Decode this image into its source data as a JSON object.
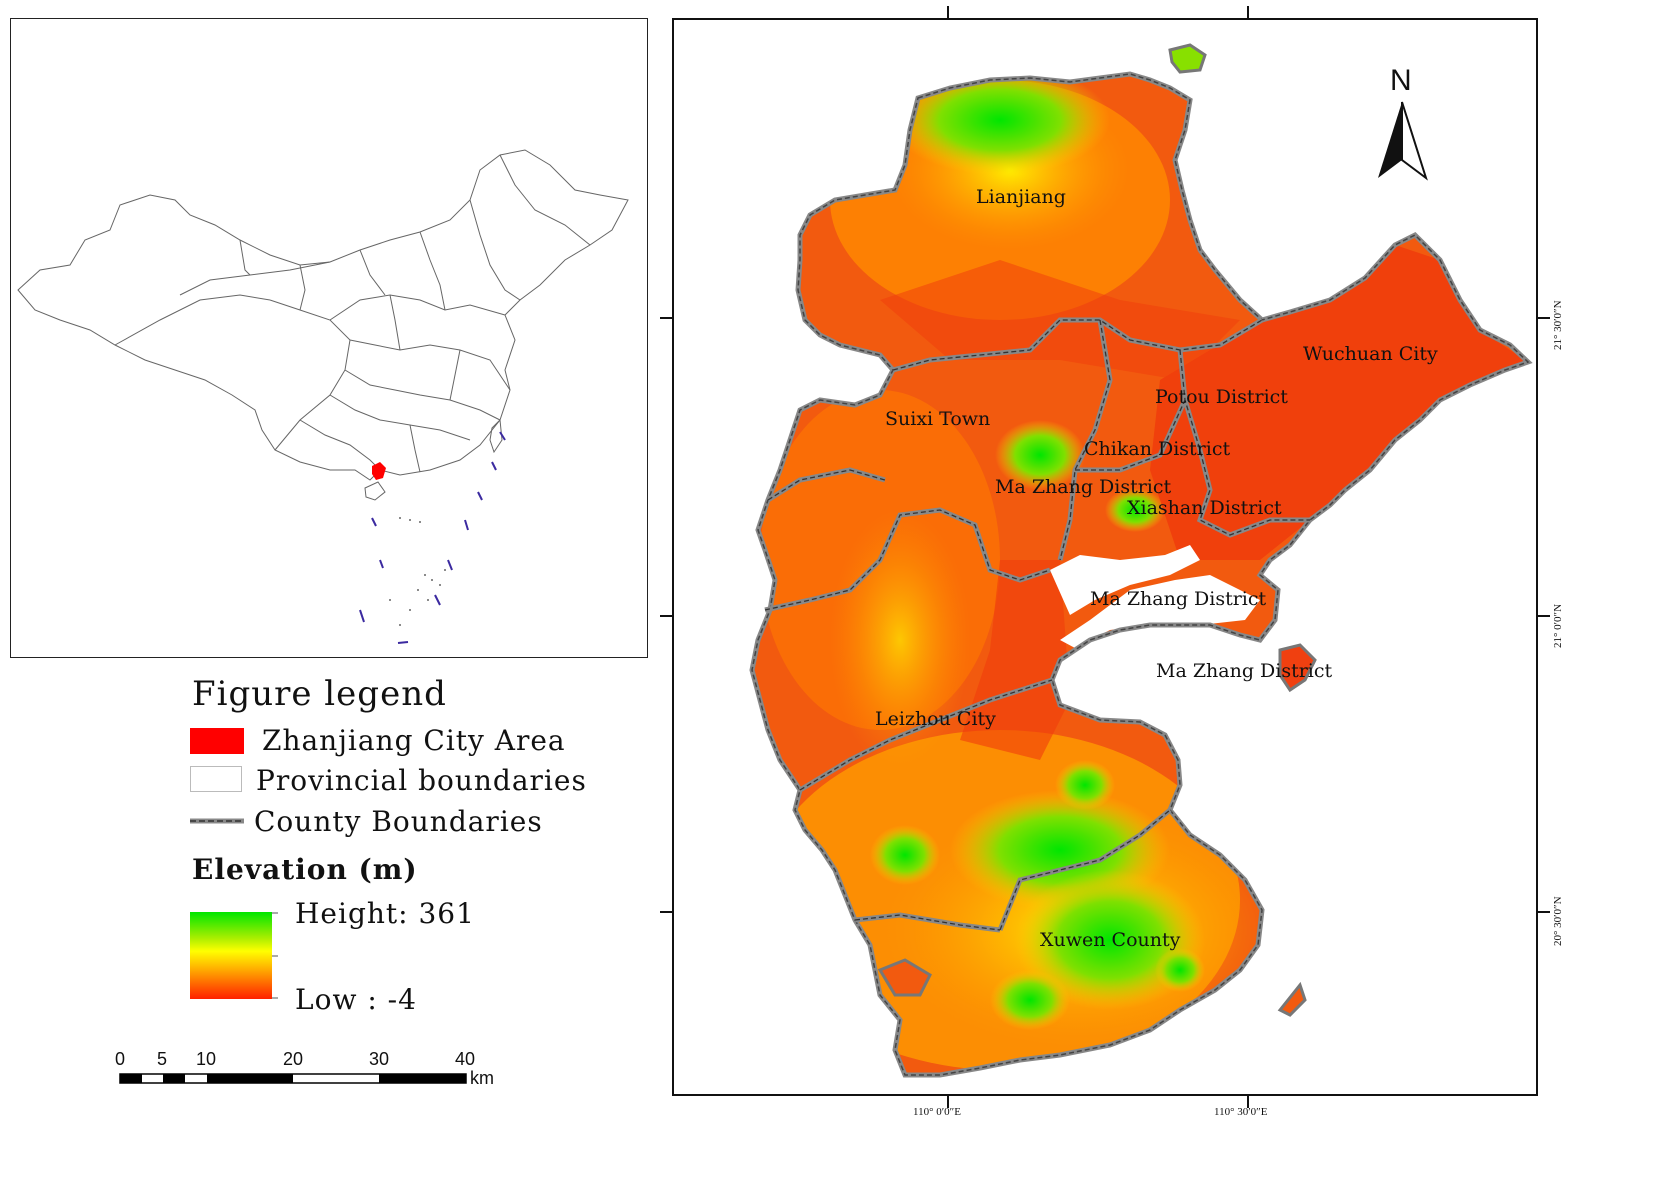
{
  "legend": {
    "title": "Figure legend",
    "items": [
      {
        "label": "Zhanjiang City Area",
        "symbol": "red-fill",
        "color": "#ff0000"
      },
      {
        "label": "Provincial boundaries",
        "symbol": "white-box"
      },
      {
        "label": "County Boundaries",
        "symbol": "gray-dashed-line"
      }
    ],
    "elevation": {
      "title": "Elevation (m)",
      "high_label": "Height: 361",
      "low_label": "Low : -4",
      "colors": [
        "#00e600",
        "#ffff00",
        "#ff2000"
      ]
    }
  },
  "scale_bar": {
    "ticks": [
      "0",
      "5",
      "10",
      "20",
      "30",
      "40"
    ],
    "unit": "km"
  },
  "north_arrow": {
    "label": "N"
  },
  "coordinates": {
    "top_lat": "21° 30′0″N",
    "mid_lat": "21° 0′0″N",
    "bottom_lat": "20° 30′0″N",
    "left_lon": "110° 0′0″E",
    "right_lon": "110° 30′0″E"
  },
  "places": [
    {
      "name": "Lianjiang"
    },
    {
      "name": "Wuchuan City"
    },
    {
      "name": "Potou District"
    },
    {
      "name": "Suixi Town"
    },
    {
      "name": "Chikan District"
    },
    {
      "name": "Ma Zhang District"
    },
    {
      "name": "Xiashan District"
    },
    {
      "name": "Ma Zhang District"
    },
    {
      "name": "Ma Zhang District"
    },
    {
      "name": "Leizhou City"
    },
    {
      "name": "Xuwen County"
    }
  ]
}
